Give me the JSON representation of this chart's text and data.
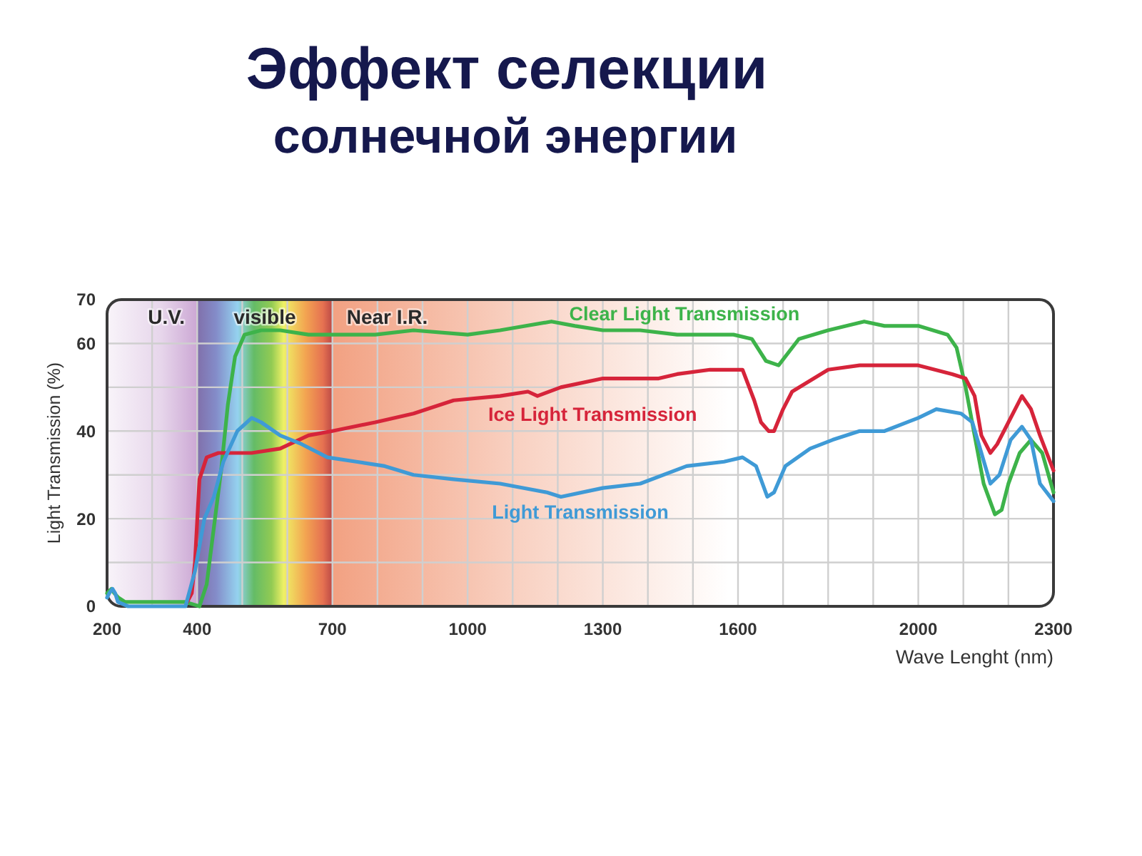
{
  "chart_data": {
    "type": "line",
    "title": "Эффект селекции",
    "subtitle": "солнечной энергии",
    "xlabel": "Wave Lenght (nm)",
    "ylabel": "Light Transmission (%)",
    "xlim": [
      200,
      2300
    ],
    "ylim": [
      0,
      70
    ],
    "xticks": [
      200,
      {
        "value": 300,
        "label": null
      },
      400,
      {
        "value": 500,
        "label": null
      },
      {
        "value": 600,
        "label": null
      },
      700,
      {
        "value": 800,
        "label": null
      },
      {
        "value": 900,
        "label": null
      },
      1000,
      {
        "value": 1100,
        "label": null
      },
      {
        "value": 1200,
        "label": null
      },
      1300,
      {
        "value": 1400,
        "label": null
      },
      {
        "value": 1500,
        "label": null
      },
      1600,
      {
        "value": 1700,
        "label": null
      },
      {
        "value": 1800,
        "label": null
      },
      {
        "value": 1900,
        "label": null
      },
      2000,
      {
        "value": 2100,
        "label": null
      },
      {
        "value": 2200,
        "label": null
      },
      2300
    ],
    "yticks": [
      0,
      {
        "value": 10,
        "label": null
      },
      20,
      {
        "value": 30,
        "label": null
      },
      40,
      {
        "value": 50,
        "label": null
      },
      60,
      70
    ],
    "grid": true,
    "bands": [
      {
        "axis": "x",
        "from": 200,
        "to": 400,
        "label": "U.V.",
        "color": "#c9a3d2"
      },
      {
        "axis": "x",
        "from": 400,
        "to": 700,
        "label": "visible"
      },
      {
        "axis": "x",
        "from": 700,
        "to": 2300,
        "label": "Near I.R.",
        "color": "#f2a182"
      }
    ],
    "series": [
      {
        "name": "Clear Light Transmission",
        "color": "#3db34a",
        "x": [
          200,
          210,
          216,
          225,
          240,
          300,
          374,
          405,
          421,
          437,
          453,
          468,
          484,
          505,
          542,
          584,
          647,
          700,
          795,
          880,
          1000,
          1072,
          1186,
          1238,
          1300,
          1383,
          1465,
          1590,
          1631,
          1662,
          1690,
          1735,
          1800,
          1880,
          1925,
          2000,
          2065,
          2085,
          2105,
          2125,
          2145,
          2170,
          2185,
          2200,
          2225,
          2250,
          2275,
          2300
        ],
        "values": [
          3,
          4,
          3,
          2,
          1,
          1,
          1,
          0,
          5,
          18,
          31,
          46,
          57,
          62,
          63,
          63,
          62,
          62,
          62,
          63,
          62,
          63,
          65,
          64,
          63,
          63,
          62,
          62,
          61,
          56,
          55,
          61,
          63,
          65,
          64,
          64,
          62,
          59,
          50,
          39,
          28,
          21,
          22,
          28,
          35,
          38,
          35,
          26
        ]
      },
      {
        "name": "Ice Light Transmission",
        "color": "#d6243a",
        "x": [
          378,
          388,
          395,
          405,
          421,
          447,
          521,
          584,
          647,
          700,
          795,
          880,
          969,
          1072,
          1134,
          1155,
          1207,
          1300,
          1362,
          1424,
          1465,
          1538,
          1610,
          1636,
          1651,
          1668,
          1680,
          1700,
          1720,
          1800,
          1870,
          1965,
          2000,
          2075,
          2105,
          2125,
          2140,
          2160,
          2175,
          2200,
          2230,
          2250,
          2270,
          2300
        ],
        "values": [
          1,
          3,
          10,
          29,
          34,
          35,
          35,
          36,
          39,
          40,
          42,
          44,
          47,
          48,
          49,
          48,
          50,
          52,
          52,
          52,
          53,
          54,
          54,
          47,
          42,
          40,
          40,
          45,
          49,
          54,
          55,
          55,
          55,
          53,
          52,
          48,
          39,
          35,
          37,
          42,
          48,
          45,
          39,
          31
        ]
      },
      {
        "name": "Light Transmission",
        "color": "#3f9ad6",
        "x": [
          200,
          205,
          212,
          218,
          224,
          247,
          300,
          374,
          395,
          416,
          437,
          458,
          489,
          521,
          542,
          584,
          632,
          689,
          753,
          816,
          880,
          969,
          1072,
          1176,
          1207,
          1300,
          1383,
          1486,
          1569,
          1610,
          1640,
          1665,
          1680,
          1705,
          1760,
          1810,
          1870,
          1925,
          2000,
          2040,
          2095,
          2120,
          2140,
          2160,
          2180,
          2205,
          2230,
          2250,
          2270,
          2300
        ],
        "values": [
          2,
          3,
          4,
          3,
          1,
          0,
          0,
          0,
          8,
          20,
          25,
          33,
          40,
          43,
          42,
          39,
          37,
          34,
          33,
          32,
          30,
          29,
          28,
          26,
          25,
          27,
          28,
          32,
          33,
          34,
          32,
          25,
          26,
          32,
          36,
          38,
          40,
          40,
          43,
          45,
          44,
          42,
          35,
          28,
          30,
          38,
          41,
          38,
          28,
          24
        ]
      }
    ]
  }
}
